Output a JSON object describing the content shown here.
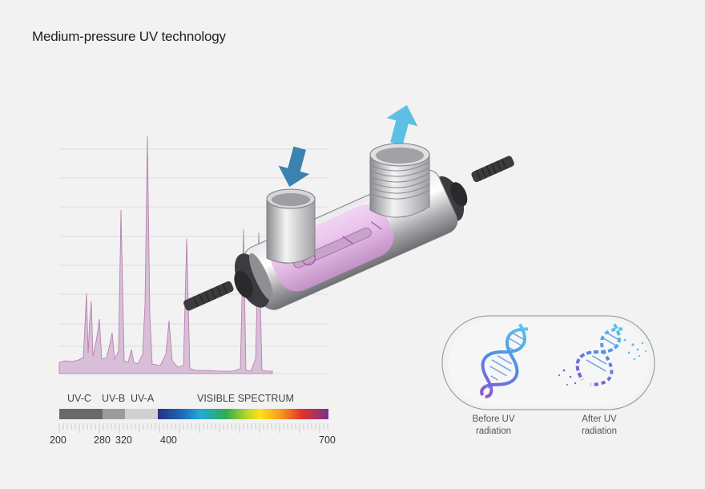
{
  "title": "Medium-pressure UV technology",
  "spectrum": {
    "bands": [
      {
        "label": "UV-C",
        "from": 200,
        "to": 280,
        "color": "#69696c"
      },
      {
        "label": "UV-B",
        "from": 280,
        "to": 320,
        "color": "#9c9ca0"
      },
      {
        "label": "UV-A",
        "from": 320,
        "to": 400,
        "color": "#d0d0d3"
      },
      {
        "label": "VISIBLE SPECTRUM",
        "from": 400,
        "to": 700,
        "color": "gradient"
      }
    ],
    "ticks": [
      "200",
      "280",
      "320",
      "400",
      "700"
    ],
    "fill_color": "#d8bed6",
    "line_color": "#b07caa"
  },
  "arrows": {
    "inlet_color": "#3a82b0",
    "outlet_color": "#5cc0e6"
  },
  "dna": {
    "before_caption": [
      "Before UV",
      "radiation"
    ],
    "after_caption": [
      "After UV",
      "radiation"
    ]
  }
}
